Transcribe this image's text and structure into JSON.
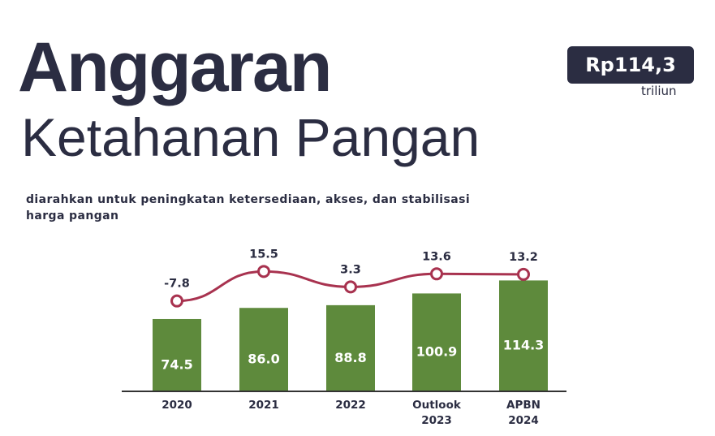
{
  "header": {
    "title_main": "Anggaran",
    "title_sub": "Ketahanan Pangan",
    "badge_value": "Rp114,3",
    "badge_unit": "triliun",
    "subtitle": "diarahkan untuk peningkatan ketersediaan, akses, dan stabilisasi harga pangan"
  },
  "colors": {
    "bar": "#5e8a3c",
    "line": "#a8324f",
    "text": "#2b2d42",
    "badge_bg": "#2b2d42"
  },
  "chart_data": {
    "type": "bar",
    "categories": [
      [
        "2020"
      ],
      [
        "2021"
      ],
      [
        "2022"
      ],
      [
        "Outlook",
        "2023"
      ],
      [
        "APBN",
        "2024"
      ]
    ],
    "series": [
      {
        "values": [
          74.5,
          86.0,
          88.8,
          100.9,
          114.3
        ],
        "labels": [
          "74.5",
          "86.0",
          "88.8",
          "100.9",
          "114.3"
        ]
      },
      {
        "type": "line",
        "values": [
          -7.8,
          15.5,
          3.3,
          13.6,
          13.2
        ],
        "labels": [
          "-7.8",
          "15.5",
          "3.3",
          "13.6",
          "13.2"
        ]
      }
    ],
    "title": "",
    "xlabel": "",
    "ylabel": "",
    "grid": false,
    "legend": "none"
  }
}
